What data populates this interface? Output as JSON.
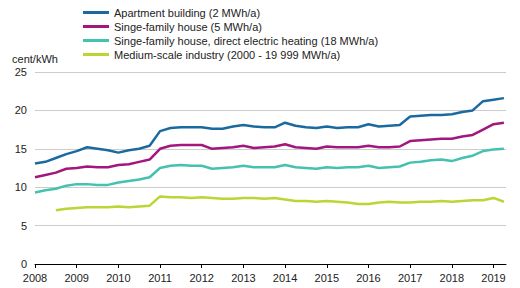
{
  "chart_data": {
    "type": "line",
    "y_label": "cent/kWh",
    "x": [
      2008,
      2008.25,
      2008.5,
      2008.75,
      2009,
      2009.25,
      2009.5,
      2009.75,
      2010,
      2010.25,
      2010.5,
      2010.75,
      2011,
      2011.25,
      2011.5,
      2011.75,
      2012,
      2012.25,
      2012.5,
      2012.75,
      2013,
      2013.25,
      2013.5,
      2013.75,
      2014,
      2014.25,
      2014.5,
      2014.75,
      2015,
      2015.25,
      2015.5,
      2015.75,
      2016,
      2016.25,
      2016.5,
      2016.75,
      2017,
      2017.25,
      2017.5,
      2017.75,
      2018,
      2018.25,
      2018.5,
      2018.75,
      2019,
      2019.25
    ],
    "series": [
      {
        "name": "Apartment building (2 MWh/a)",
        "color": "#1a6aa0",
        "values": [
          13.1,
          13.3,
          13.8,
          14.3,
          14.7,
          15.2,
          15.0,
          14.8,
          14.5,
          14.8,
          15.0,
          15.4,
          17.3,
          17.7,
          17.8,
          17.8,
          17.8,
          17.6,
          17.6,
          17.9,
          18.1,
          17.9,
          17.8,
          17.8,
          18.4,
          18.0,
          17.8,
          17.7,
          17.9,
          17.7,
          17.8,
          17.8,
          18.2,
          17.9,
          18.0,
          18.1,
          19.2,
          19.3,
          19.4,
          19.4,
          19.5,
          19.8,
          20.0,
          21.2,
          21.4,
          21.6
        ]
      },
      {
        "name": "Singe-family house (5 MWh/a)",
        "color": "#a3167e",
        "values": [
          11.3,
          11.6,
          11.9,
          12.4,
          12.5,
          12.7,
          12.6,
          12.6,
          12.9,
          13.0,
          13.3,
          13.6,
          15.0,
          15.4,
          15.5,
          15.5,
          15.5,
          15.0,
          15.1,
          15.2,
          15.4,
          15.1,
          15.2,
          15.3,
          15.6,
          15.2,
          15.1,
          15.0,
          15.3,
          15.2,
          15.2,
          15.2,
          15.4,
          15.2,
          15.2,
          15.3,
          16.0,
          16.1,
          16.2,
          16.3,
          16.3,
          16.6,
          16.8,
          17.5,
          18.2,
          18.4
        ]
      },
      {
        "name": "Singe-family house, direct electric heating (18 MWh/a)",
        "color": "#45c1b1",
        "values": [
          9.3,
          9.6,
          9.8,
          10.2,
          10.4,
          10.4,
          10.3,
          10.3,
          10.6,
          10.8,
          11.0,
          11.3,
          12.5,
          12.8,
          12.9,
          12.8,
          12.8,
          12.4,
          12.5,
          12.6,
          12.8,
          12.6,
          12.6,
          12.6,
          12.9,
          12.6,
          12.5,
          12.4,
          12.6,
          12.5,
          12.6,
          12.6,
          12.8,
          12.5,
          12.6,
          12.7,
          13.2,
          13.3,
          13.5,
          13.6,
          13.4,
          13.8,
          14.1,
          14.7,
          14.9,
          15.0
        ]
      },
      {
        "name": "Medium-scale industry (2000 - 19 999 MWh/a)",
        "color": "#b9d636",
        "values": [
          null,
          null,
          7.0,
          7.2,
          7.3,
          7.4,
          7.4,
          7.4,
          7.5,
          7.4,
          7.5,
          7.6,
          8.8,
          8.7,
          8.7,
          8.6,
          8.7,
          8.6,
          8.5,
          8.5,
          8.6,
          8.6,
          8.5,
          8.6,
          8.4,
          8.2,
          8.2,
          8.1,
          8.2,
          8.1,
          8.0,
          7.8,
          7.8,
          8.0,
          8.1,
          8.0,
          8.0,
          8.1,
          8.1,
          8.2,
          8.1,
          8.2,
          8.3,
          8.3,
          8.6,
          8.1
        ]
      }
    ],
    "xlim": [
      2008,
      2019.3
    ],
    "xticks": [
      2008,
      2009,
      2010,
      2011,
      2012,
      2013,
      2014,
      2015,
      2016,
      2017,
      2018,
      2019
    ],
    "ylim": [
      0,
      25
    ],
    "yticks": [
      0,
      5,
      10,
      15,
      20,
      25
    ],
    "grid": true,
    "legend": "top-left"
  }
}
